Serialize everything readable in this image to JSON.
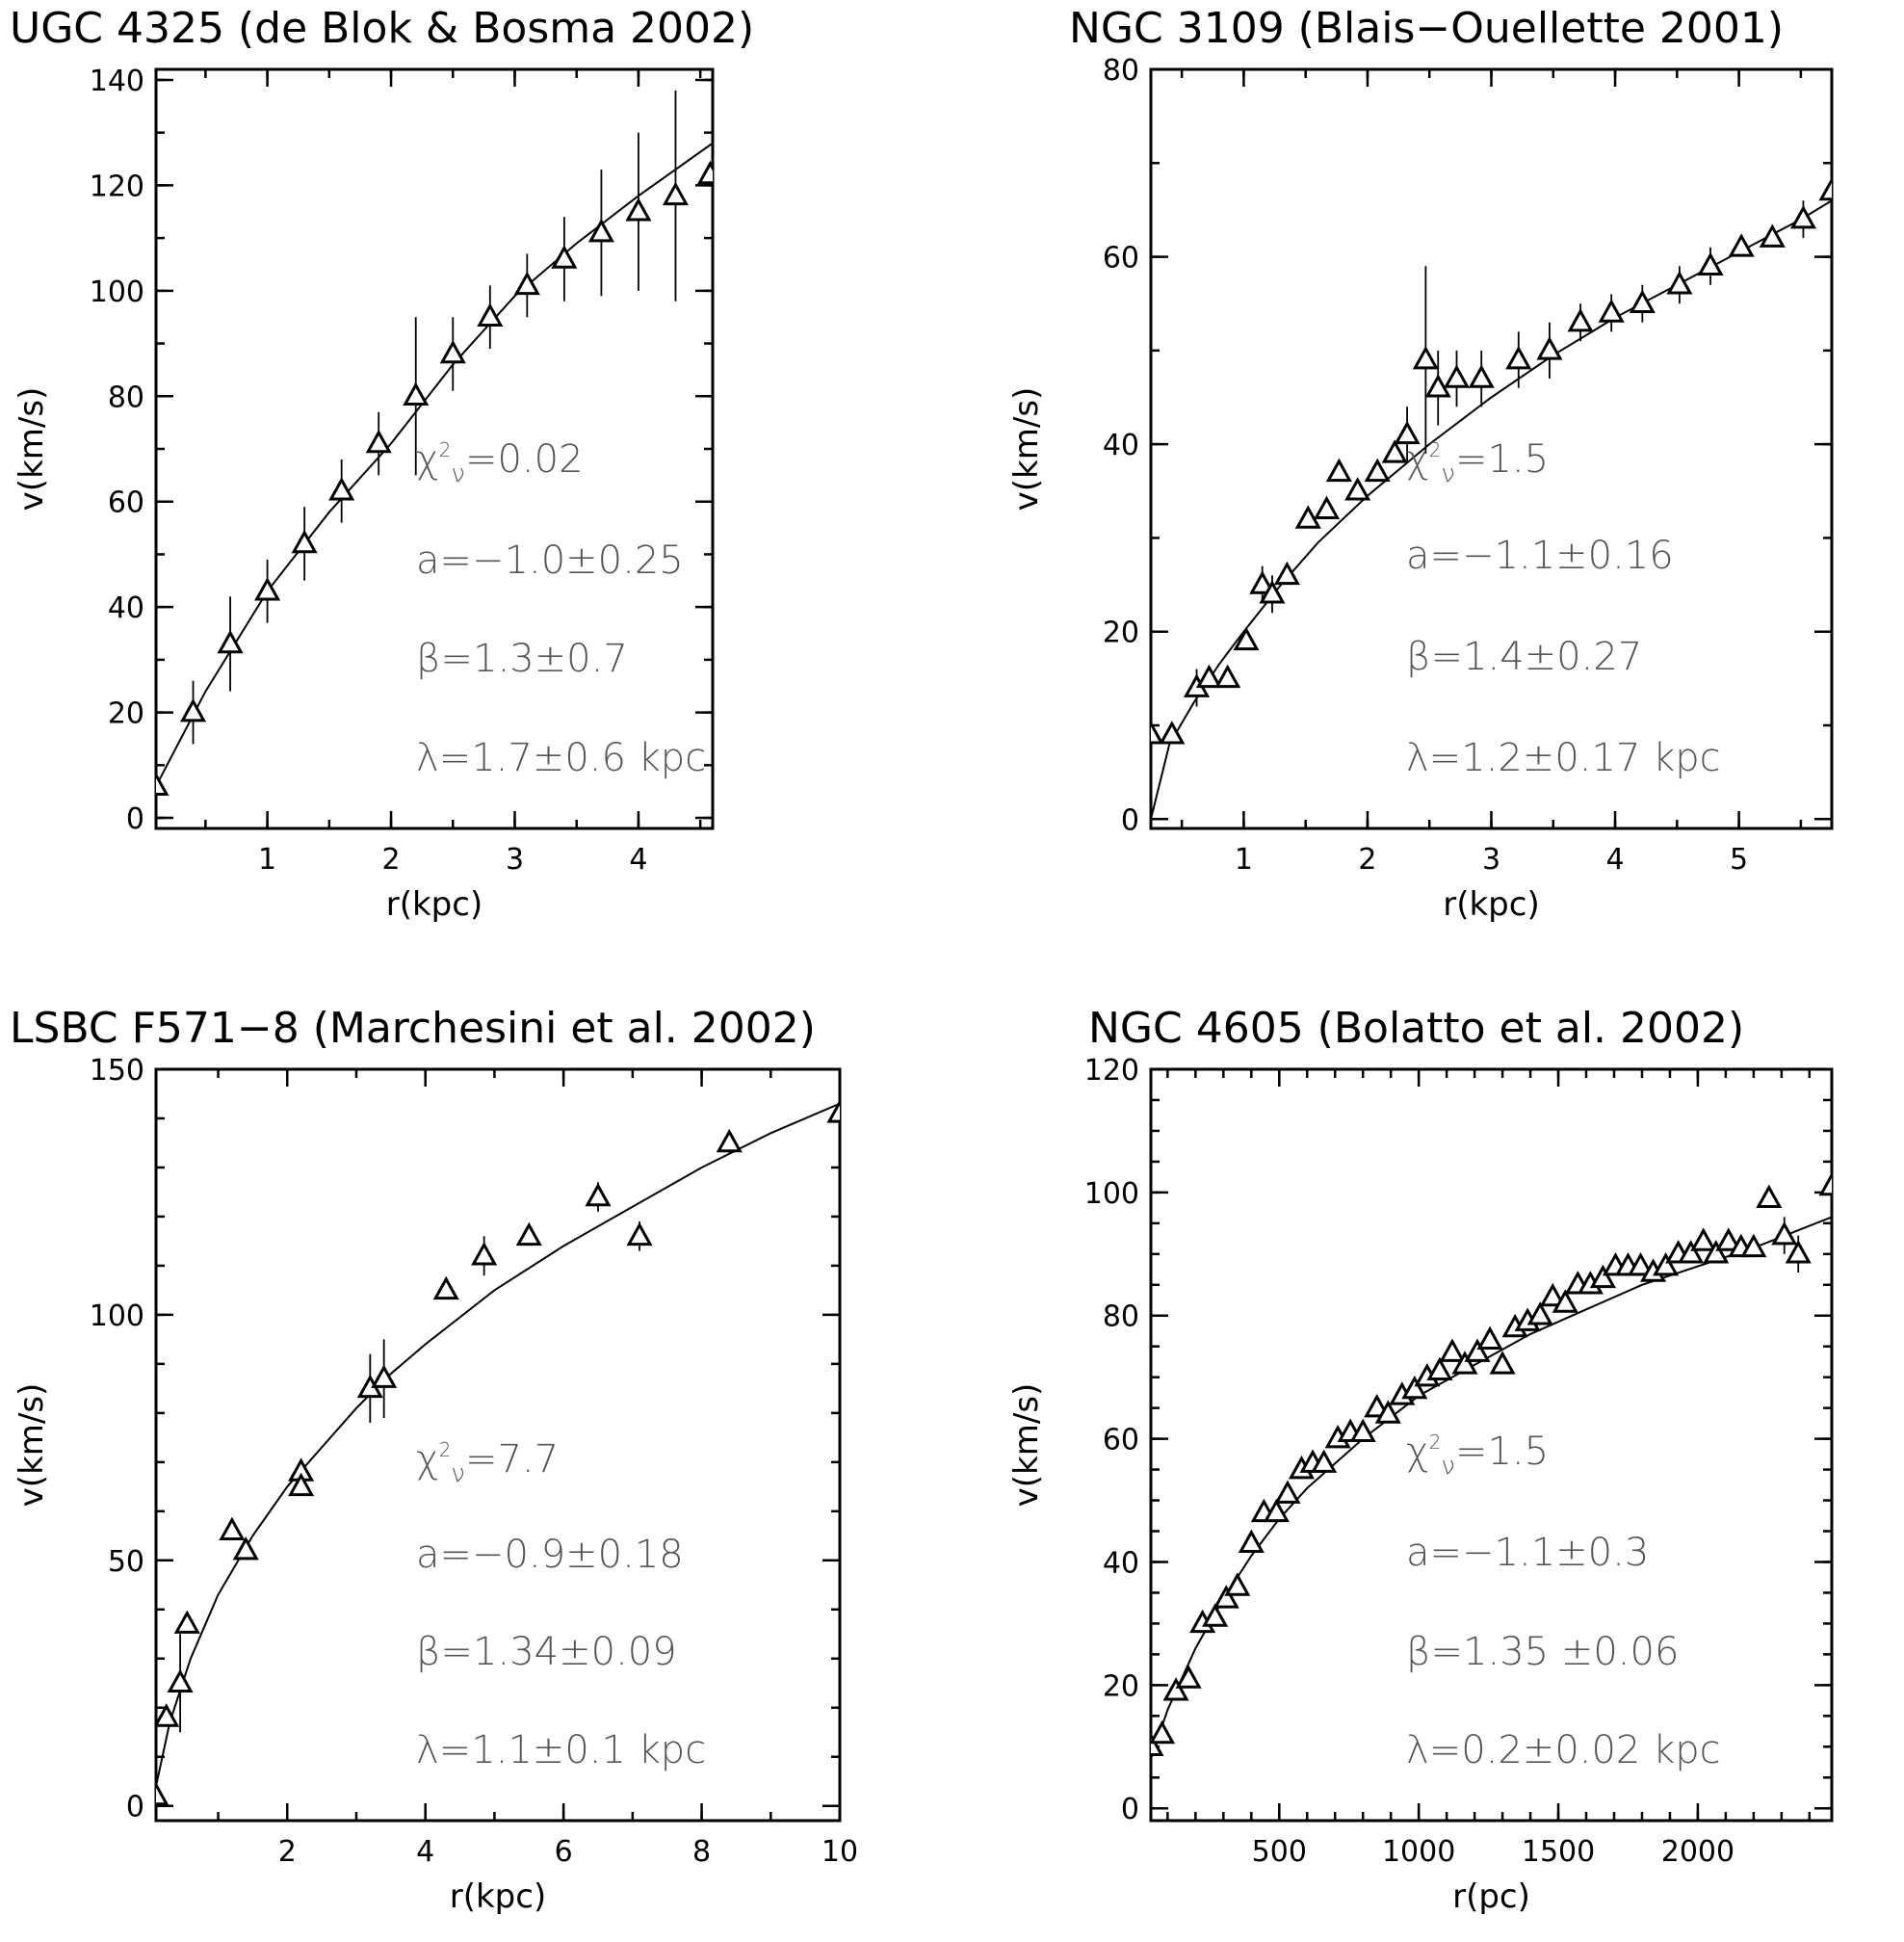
{
  "colors": {
    "ink": "#000000",
    "annotation": "#555555",
    "background": "#ffffff"
  },
  "chart_data": [
    {
      "type": "scatter",
      "title": "UGC 4325 (de Blok & Bosma  2002)",
      "xlabel": "r(kpc)",
      "ylabel": "v(km/s)",
      "xlim": [
        0.1,
        4.6
      ],
      "ylim": [
        -2,
        142
      ],
      "xticks": [
        1,
        2,
        3,
        4
      ],
      "xtick_labels": [
        "1",
        "2",
        "3",
        "4"
      ],
      "xminor": 0.5,
      "yticks": [
        0,
        20,
        40,
        60,
        80,
        100,
        120,
        140
      ],
      "ytick_labels": [
        "0",
        "20",
        "40",
        "60",
        "80",
        "100",
        "120",
        "140"
      ],
      "yminor": 10,
      "grid": false,
      "points": [
        {
          "x": 0.1,
          "y": 6,
          "err": 0
        },
        {
          "x": 0.4,
          "y": 20,
          "err": 6
        },
        {
          "x": 0.7,
          "y": 33,
          "err": 9
        },
        {
          "x": 1.0,
          "y": 43,
          "err": 6
        },
        {
          "x": 1.3,
          "y": 52,
          "err": 7
        },
        {
          "x": 1.6,
          "y": 62,
          "err": 6
        },
        {
          "x": 1.9,
          "y": 71,
          "err": 6
        },
        {
          "x": 2.2,
          "y": 80,
          "err": 15
        },
        {
          "x": 2.5,
          "y": 88,
          "err": 7
        },
        {
          "x": 2.8,
          "y": 95,
          "err": 6
        },
        {
          "x": 3.1,
          "y": 101,
          "err": 6
        },
        {
          "x": 3.4,
          "y": 106,
          "err": 8
        },
        {
          "x": 3.7,
          "y": 111,
          "err": 12
        },
        {
          "x": 4.0,
          "y": 115,
          "err": 15
        },
        {
          "x": 4.3,
          "y": 118,
          "err": 20
        },
        {
          "x": 4.58,
          "y": 122,
          "err": 0
        }
      ],
      "fit": {
        "x": [
          0.1,
          0.5,
          1.0,
          1.5,
          2.0,
          2.5,
          3.0,
          3.5,
          4.0,
          4.6
        ],
        "y": [
          6,
          24,
          43,
          58,
          71,
          86,
          99,
          109,
          118,
          128
        ]
      },
      "annotations": [
        {
          "chi_symbol": "χ",
          "chi_sup": "2",
          "chi_sub": "ν",
          "chi_value": "=0.02"
        },
        {
          "text": "a=−1.0±0.25"
        },
        {
          "text": "β=1.3±0.7"
        },
        {
          "text": "λ=1.7±0.6   kpc"
        }
      ]
    },
    {
      "type": "scatter",
      "title": "NGC 3109 (Blais−Ouellette 2001)",
      "xlabel": "r(kpc)",
      "ylabel": "v(km/s)",
      "xlim": [
        0.25,
        5.75
      ],
      "ylim": [
        -1,
        80
      ],
      "xticks": [
        1,
        2,
        3,
        4,
        5
      ],
      "xtick_labels": [
        "1",
        "2",
        "3",
        "4",
        "5"
      ],
      "xminor": 0.5,
      "yticks": [
        0,
        20,
        40,
        60,
        80
      ],
      "ytick_labels": [
        "0",
        "20",
        "40",
        "60",
        "80"
      ],
      "yminor": 10,
      "grid": false,
      "points": [
        {
          "x": 0.25,
          "y": 9,
          "err": 0
        },
        {
          "x": 0.42,
          "y": 9,
          "err": 0
        },
        {
          "x": 0.62,
          "y": 14,
          "err": 2
        },
        {
          "x": 0.72,
          "y": 15,
          "err": 0
        },
        {
          "x": 0.87,
          "y": 15,
          "err": 0
        },
        {
          "x": 1.02,
          "y": 19,
          "err": 0
        },
        {
          "x": 1.15,
          "y": 25,
          "err": 2
        },
        {
          "x": 1.23,
          "y": 24,
          "err": 2
        },
        {
          "x": 1.35,
          "y": 26,
          "err": 0
        },
        {
          "x": 1.52,
          "y": 32,
          "err": 0
        },
        {
          "x": 1.67,
          "y": 33,
          "err": 0
        },
        {
          "x": 1.77,
          "y": 37,
          "err": 0
        },
        {
          "x": 1.92,
          "y": 35,
          "err": 0
        },
        {
          "x": 2.08,
          "y": 37,
          "err": 0
        },
        {
          "x": 2.22,
          "y": 39,
          "err": 0
        },
        {
          "x": 2.32,
          "y": 41,
          "err": 3
        },
        {
          "x": 2.47,
          "y": 49,
          "err": 10
        },
        {
          "x": 2.57,
          "y": 46,
          "err": 4
        },
        {
          "x": 2.72,
          "y": 47,
          "err": 3
        },
        {
          "x": 2.92,
          "y": 47,
          "err": 3
        },
        {
          "x": 3.22,
          "y": 49,
          "err": 3
        },
        {
          "x": 3.47,
          "y": 50,
          "err": 3
        },
        {
          "x": 3.72,
          "y": 53,
          "err": 2
        },
        {
          "x": 3.97,
          "y": 54,
          "err": 2
        },
        {
          "x": 4.22,
          "y": 55,
          "err": 2
        },
        {
          "x": 4.52,
          "y": 57,
          "err": 2
        },
        {
          "x": 4.77,
          "y": 59,
          "err": 2
        },
        {
          "x": 5.02,
          "y": 61,
          "err": 0
        },
        {
          "x": 5.27,
          "y": 62,
          "err": 0
        },
        {
          "x": 5.52,
          "y": 64,
          "err": 2
        },
        {
          "x": 5.75,
          "y": 67,
          "err": 0
        }
      ],
      "fit": {
        "x": [
          0.25,
          0.4,
          0.6,
          0.8,
          1.0,
          1.3,
          1.6,
          2.0,
          2.5,
          3.0,
          3.5,
          4.0,
          4.5,
          5.0,
          5.5,
          5.75
        ],
        "y": [
          0,
          8,
          12.5,
          16.5,
          20,
          25,
          29.5,
          34.5,
          40,
          45,
          49.5,
          53.5,
          57,
          60.5,
          64,
          66
        ]
      },
      "annotations": [
        {
          "chi_symbol": "χ",
          "chi_sup": "2",
          "chi_sub": "ν",
          "chi_value": "=1.5"
        },
        {
          "text": "a=−1.1±0.16"
        },
        {
          "text": "β=1.4±0.27"
        },
        {
          "text": "λ=1.2±0.17  kpc"
        }
      ]
    },
    {
      "type": "scatter",
      "title": "LSBC F571−8 (Marchesini et al. 2002)",
      "xlabel": "r(kpc)",
      "ylabel": "v(km/s)",
      "xlim": [
        0.1,
        10
      ],
      "ylim": [
        -3,
        150
      ],
      "xticks": [
        2,
        4,
        6,
        8,
        10
      ],
      "xtick_labels": [
        "2",
        "4",
        "6",
        "8",
        "10"
      ],
      "xminor": 1,
      "yticks": [
        0,
        50,
        100,
        150
      ],
      "ytick_labels": [
        "0",
        "50",
        "100",
        "150"
      ],
      "yminor": 10,
      "grid": false,
      "points": [
        {
          "x": 0.1,
          "y": 2,
          "err": 0
        },
        {
          "x": 0.25,
          "y": 18,
          "err": 0
        },
        {
          "x": 0.45,
          "y": 25,
          "err": 10
        },
        {
          "x": 0.55,
          "y": 37,
          "err": 0
        },
        {
          "x": 1.2,
          "y": 56,
          "err": 0
        },
        {
          "x": 1.4,
          "y": 52,
          "err": 0
        },
        {
          "x": 2.2,
          "y": 68,
          "err": 0
        },
        {
          "x": 2.2,
          "y": 65,
          "err": 0
        },
        {
          "x": 3.2,
          "y": 85,
          "err": 7
        },
        {
          "x": 3.4,
          "y": 87,
          "err": 8
        },
        {
          "x": 4.3,
          "y": 105,
          "err": 0
        },
        {
          "x": 4.85,
          "y": 112,
          "err": 4
        },
        {
          "x": 5.5,
          "y": 116,
          "err": 0
        },
        {
          "x": 6.5,
          "y": 124,
          "err": 3
        },
        {
          "x": 7.1,
          "y": 116,
          "err": 3
        },
        {
          "x": 8.4,
          "y": 135,
          "err": 2
        },
        {
          "x": 10,
          "y": 141,
          "err": 0
        }
      ],
      "fit": {
        "x": [
          0.1,
          0.3,
          0.6,
          1.0,
          1.5,
          2.0,
          2.5,
          3.0,
          3.5,
          4.0,
          5.0,
          6.0,
          7.0,
          8.0,
          9.0,
          10.0
        ],
        "y": [
          4,
          17,
          30,
          43,
          55,
          65,
          73,
          81,
          88,
          94,
          105,
          114,
          122,
          130,
          137,
          143
        ]
      },
      "annotations": [
        {
          "chi_symbol": "χ",
          "chi_sup": "2",
          "chi_sub": "ν",
          "chi_value": "=7.7"
        },
        {
          "text": "a=−0.9±0.18"
        },
        {
          "text": "β=1.34±0.09"
        },
        {
          "text": "λ=1.1±0.1  kpc"
        }
      ]
    },
    {
      "type": "scatter",
      "title": "NGC 4605 (Bolatto et al. 2002)",
      "xlabel": "r(pc)",
      "ylabel": "v(km/s)",
      "xlim": [
        40,
        2480
      ],
      "ylim": [
        -2,
        120
      ],
      "xticks": [
        500,
        1000,
        1500,
        2000
      ],
      "xtick_labels": [
        "500",
        "1000",
        "1500",
        "2000"
      ],
      "xminor": 100,
      "yticks": [
        0,
        20,
        40,
        60,
        80,
        100,
        120
      ],
      "ytick_labels": [
        "0",
        "20",
        "40",
        "60",
        "80",
        "100",
        "120"
      ],
      "yminor": 5,
      "grid": false,
      "points": [
        {
          "x": 40,
          "y": 10,
          "err": 0
        },
        {
          "x": 80,
          "y": 12,
          "err": 0
        },
        {
          "x": 130,
          "y": 19,
          "err": 0
        },
        {
          "x": 175,
          "y": 21,
          "err": 0
        },
        {
          "x": 225,
          "y": 30,
          "err": 0
        },
        {
          "x": 270,
          "y": 31,
          "err": 0
        },
        {
          "x": 310,
          "y": 34,
          "err": 0
        },
        {
          "x": 350,
          "y": 36,
          "err": 0
        },
        {
          "x": 400,
          "y": 43,
          "err": 0
        },
        {
          "x": 445,
          "y": 48,
          "err": 0
        },
        {
          "x": 490,
          "y": 48,
          "err": 0
        },
        {
          "x": 530,
          "y": 51,
          "err": 0
        },
        {
          "x": 580,
          "y": 55,
          "err": 0
        },
        {
          "x": 620,
          "y": 56,
          "err": 0
        },
        {
          "x": 660,
          "y": 56,
          "err": 0
        },
        {
          "x": 710,
          "y": 60,
          "err": 0
        },
        {
          "x": 755,
          "y": 61,
          "err": 0
        },
        {
          "x": 800,
          "y": 61,
          "err": 0
        },
        {
          "x": 850,
          "y": 65,
          "err": 0
        },
        {
          "x": 890,
          "y": 64,
          "err": 0
        },
        {
          "x": 940,
          "y": 67,
          "err": 0
        },
        {
          "x": 985,
          "y": 68,
          "err": 0
        },
        {
          "x": 1030,
          "y": 70,
          "err": 0
        },
        {
          "x": 1075,
          "y": 71,
          "err": 0
        },
        {
          "x": 1120,
          "y": 74,
          "err": 0
        },
        {
          "x": 1165,
          "y": 72,
          "err": 0
        },
        {
          "x": 1210,
          "y": 74,
          "err": 0
        },
        {
          "x": 1255,
          "y": 76,
          "err": 0
        },
        {
          "x": 1300,
          "y": 72,
          "err": 0
        },
        {
          "x": 1345,
          "y": 78,
          "err": 0
        },
        {
          "x": 1390,
          "y": 79,
          "err": 0
        },
        {
          "x": 1435,
          "y": 80,
          "err": 0
        },
        {
          "x": 1480,
          "y": 83,
          "err": 0
        },
        {
          "x": 1525,
          "y": 82,
          "err": 0
        },
        {
          "x": 1570,
          "y": 85,
          "err": 0
        },
        {
          "x": 1615,
          "y": 85,
          "err": 0
        },
        {
          "x": 1660,
          "y": 86,
          "err": 0
        },
        {
          "x": 1705,
          "y": 88,
          "err": 0
        },
        {
          "x": 1750,
          "y": 88,
          "err": 0
        },
        {
          "x": 1795,
          "y": 88,
          "err": 0
        },
        {
          "x": 1840,
          "y": 87,
          "err": 0
        },
        {
          "x": 1885,
          "y": 88,
          "err": 0
        },
        {
          "x": 1930,
          "y": 90,
          "err": 0
        },
        {
          "x": 1975,
          "y": 90,
          "err": 0
        },
        {
          "x": 2020,
          "y": 92,
          "err": 0
        },
        {
          "x": 2065,
          "y": 90,
          "err": 0
        },
        {
          "x": 2110,
          "y": 92,
          "err": 0
        },
        {
          "x": 2155,
          "y": 91,
          "err": 0
        },
        {
          "x": 2200,
          "y": 91,
          "err": 0
        },
        {
          "x": 2255,
          "y": 99,
          "err": 0
        },
        {
          "x": 2310,
          "y": 93,
          "err": 3
        },
        {
          "x": 2360,
          "y": 90,
          "err": 3
        },
        {
          "x": 2480,
          "y": 101,
          "err": 0
        }
      ],
      "fit": {
        "x": [
          40,
          100,
          200,
          300,
          400,
          500,
          600,
          800,
          1000,
          1200,
          1400,
          1600,
          1800,
          2000,
          2200,
          2480
        ],
        "y": [
          8,
          16,
          26,
          34,
          41,
          47,
          52,
          60,
          67,
          72,
          77,
          81,
          85,
          88,
          91,
          96
        ]
      },
      "annotations": [
        {
          "chi_symbol": "χ",
          "chi_sup": "2",
          "chi_sub": "ν",
          "chi_value": "=1.5"
        },
        {
          "text": "a=−1.1±0.3"
        },
        {
          "text": "β=1.35  ±0.06"
        },
        {
          "text": "λ=0.2±0.02  kpc"
        }
      ]
    }
  ]
}
